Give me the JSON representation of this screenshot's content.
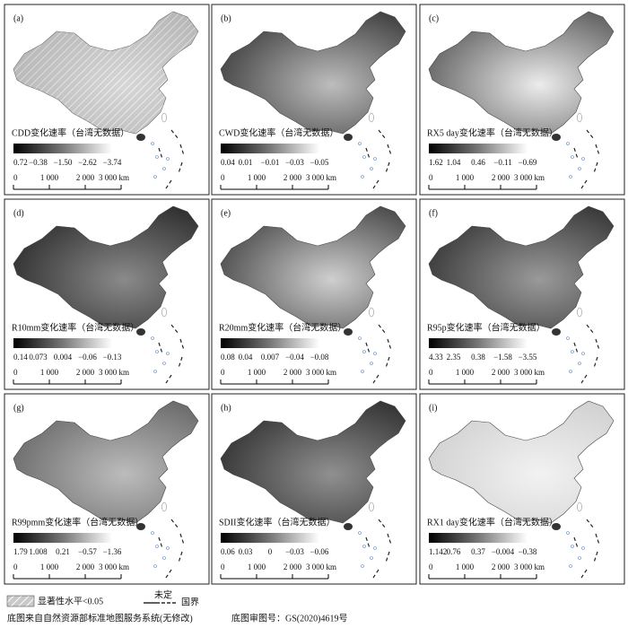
{
  "panels": [
    {
      "label": "(a)",
      "legend_title": "CDD变化速率（台湾无数据）",
      "ticks": [
        "0.72",
        "−0.38",
        "−1.50",
        "−2.62",
        "−3.74"
      ],
      "scale_labels": [
        "0",
        "1 000",
        "2 000",
        "3 000 km"
      ]
    },
    {
      "label": "(b)",
      "legend_title": "CWD变化速率（台湾无数据）",
      "ticks": [
        "0.04",
        "0.01",
        "−0.01",
        "−0.03",
        "−0.05"
      ],
      "scale_labels": [
        "0",
        "1 000",
        "2 000",
        "3 000 km"
      ]
    },
    {
      "label": "(c)",
      "legend_title": "RX5 day变化速率（台湾无数据）",
      "ticks": [
        "1.62",
        "1.04",
        "0.46",
        "−0.11",
        "−0.69"
      ],
      "scale_labels": [
        "0",
        "1 000",
        "2 000",
        "3 000 km"
      ]
    },
    {
      "label": "(d)",
      "legend_title": "R10mm变化速率（台湾无数据）",
      "ticks": [
        "0.14",
        "0.073",
        "0.004",
        "−0.06",
        "−0.13"
      ],
      "scale_labels": [
        "0",
        "1 000",
        "2 000",
        "3 000 km"
      ]
    },
    {
      "label": "(e)",
      "legend_title": "R20mm变化速率（台湾无数据）",
      "ticks": [
        "0.08",
        "0.04",
        "0.007",
        "−0.04",
        "−0.08"
      ],
      "scale_labels": [
        "0",
        "1 000",
        "2 000",
        "3 000 km"
      ]
    },
    {
      "label": "(f)",
      "legend_title": "R95p变化速率（台湾无数据）",
      "ticks": [
        "4.33",
        "2.35",
        "0.38",
        "−1.58",
        "−3.55"
      ],
      "scale_labels": [
        "0",
        "1 000",
        "2 000",
        "3 000 km"
      ]
    },
    {
      "label": "(g)",
      "legend_title": "R99pmm变化速率（台湾无数据）",
      "ticks": [
        "1.79",
        "1.008",
        "0.21",
        "−0.57",
        "−1.36"
      ],
      "scale_labels": [
        "0",
        "1 000",
        "2 000",
        "3 000 km"
      ]
    },
    {
      "label": "(h)",
      "legend_title": "SDII变化速率（台湾无数据）",
      "ticks": [
        "0.06",
        "0.03",
        "0",
        "−0.03",
        "−0.06"
      ],
      "scale_labels": [
        "0",
        "1 000",
        "2 000",
        "3 000 km"
      ]
    },
    {
      "label": "(i)",
      "legend_title": "RX1 day变化速率（台湾无数据）",
      "ticks": [
        "1.142",
        "0.76",
        "0.37",
        "−0.004",
        "−0.38"
      ],
      "scale_labels": [
        "0",
        "1 000",
        "2 000",
        "3 000 km"
      ]
    }
  ],
  "legend": {
    "significance": "显著性水平<0.05",
    "undetermined": "未定",
    "border": "国界"
  },
  "footer": {
    "source": "底图来自自然资源部标准地图服务系统(无修改)",
    "approval": "底图审图号：GS(2020)4619号"
  }
}
